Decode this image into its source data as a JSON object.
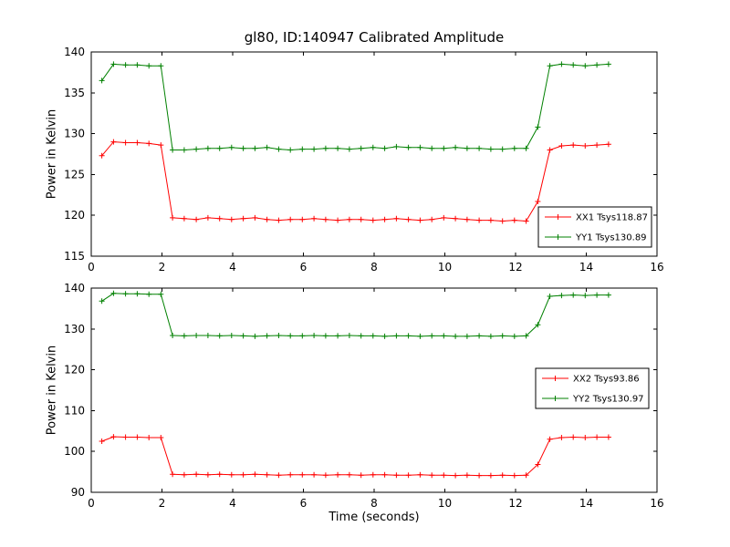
{
  "figure": {
    "title": "gl80, ID:140947 Calibrated Amplitude",
    "background": "#ffffff"
  },
  "chart_data": [
    {
      "type": "line",
      "title": "",
      "xlabel": "",
      "ylabel": "Power in Kelvin",
      "xlim": [
        0,
        16
      ],
      "ylim": [
        115,
        140
      ],
      "xticks": [
        0,
        2,
        4,
        6,
        8,
        10,
        12,
        14,
        16
      ],
      "yticks": [
        115,
        120,
        125,
        130,
        135,
        140
      ],
      "grid": false,
      "legend_loc": "lower right",
      "x": [
        0.3,
        0.63,
        0.97,
        1.3,
        1.63,
        1.97,
        2.3,
        2.63,
        2.97,
        3.3,
        3.63,
        3.97,
        4.3,
        4.63,
        4.97,
        5.3,
        5.63,
        5.97,
        6.3,
        6.63,
        6.97,
        7.3,
        7.63,
        7.97,
        8.3,
        8.63,
        8.97,
        9.3,
        9.63,
        9.97,
        10.3,
        10.63,
        10.97,
        11.3,
        11.63,
        11.97,
        12.3,
        12.63,
        12.97,
        13.3,
        13.63,
        13.97,
        14.3,
        14.63
      ],
      "series": [
        {
          "name": "XX1 Tsys118.87",
          "color": "#ff0000",
          "marker": "+",
          "values": [
            127.3,
            129.0,
            128.9,
            128.9,
            128.8,
            128.6,
            119.7,
            119.6,
            119.5,
            119.7,
            119.6,
            119.5,
            119.6,
            119.7,
            119.5,
            119.4,
            119.5,
            119.5,
            119.6,
            119.5,
            119.4,
            119.5,
            119.5,
            119.4,
            119.5,
            119.6,
            119.5,
            119.4,
            119.5,
            119.7,
            119.6,
            119.5,
            119.4,
            119.4,
            119.3,
            119.4,
            119.3,
            121.7,
            128.0,
            128.5,
            128.6,
            128.5,
            128.6,
            128.7
          ]
        },
        {
          "name": "YY1 Tsys130.89",
          "color": "#008000",
          "marker": "+",
          "values": [
            136.5,
            138.5,
            138.4,
            138.4,
            138.3,
            138.3,
            128.0,
            128.0,
            128.1,
            128.2,
            128.2,
            128.3,
            128.2,
            128.2,
            128.3,
            128.1,
            128.0,
            128.1,
            128.1,
            128.2,
            128.2,
            128.1,
            128.2,
            128.3,
            128.2,
            128.4,
            128.3,
            128.3,
            128.2,
            128.2,
            128.3,
            128.2,
            128.2,
            128.1,
            128.1,
            128.2,
            128.2,
            130.8,
            138.3,
            138.5,
            138.4,
            138.3,
            138.4,
            138.5
          ]
        }
      ]
    },
    {
      "type": "line",
      "title": "",
      "xlabel": "Time (seconds)",
      "ylabel": "Power in Kelvin",
      "xlim": [
        0,
        16
      ],
      "ylim": [
        90,
        140
      ],
      "xticks": [
        0,
        2,
        4,
        6,
        8,
        10,
        12,
        14,
        16
      ],
      "yticks": [
        90,
        100,
        110,
        120,
        130,
        140
      ],
      "grid": false,
      "legend_loc": "center right",
      "x": [
        0.3,
        0.63,
        0.97,
        1.3,
        1.63,
        1.97,
        2.3,
        2.63,
        2.97,
        3.3,
        3.63,
        3.97,
        4.3,
        4.63,
        4.97,
        5.3,
        5.63,
        5.97,
        6.3,
        6.63,
        6.97,
        7.3,
        7.63,
        7.97,
        8.3,
        8.63,
        8.97,
        9.3,
        9.63,
        9.97,
        10.3,
        10.63,
        10.97,
        11.3,
        11.63,
        11.97,
        12.3,
        12.63,
        12.97,
        13.3,
        13.63,
        13.97,
        14.3,
        14.63
      ],
      "series": [
        {
          "name": "XX2 Tsys93.86",
          "color": "#ff0000",
          "marker": "+",
          "values": [
            102.5,
            103.6,
            103.5,
            103.5,
            103.4,
            103.4,
            94.4,
            94.3,
            94.4,
            94.3,
            94.4,
            94.3,
            94.3,
            94.4,
            94.3,
            94.2,
            94.3,
            94.3,
            94.3,
            94.2,
            94.3,
            94.3,
            94.2,
            94.3,
            94.3,
            94.2,
            94.2,
            94.3,
            94.2,
            94.2,
            94.1,
            94.2,
            94.1,
            94.1,
            94.2,
            94.1,
            94.2,
            96.8,
            103.0,
            103.4,
            103.5,
            103.4,
            103.5,
            103.5
          ]
        },
        {
          "name": "YY2 Tsys130.97",
          "color": "#008000",
          "marker": "+",
          "values": [
            136.8,
            138.7,
            138.6,
            138.6,
            138.5,
            138.5,
            128.4,
            128.3,
            128.4,
            128.4,
            128.3,
            128.4,
            128.3,
            128.2,
            128.3,
            128.4,
            128.3,
            128.3,
            128.4,
            128.3,
            128.3,
            128.4,
            128.3,
            128.3,
            128.2,
            128.3,
            128.3,
            128.2,
            128.3,
            128.3,
            128.2,
            128.2,
            128.3,
            128.2,
            128.3,
            128.2,
            128.3,
            131.0,
            138.0,
            138.2,
            138.3,
            138.2,
            138.3,
            138.3
          ]
        }
      ]
    }
  ]
}
